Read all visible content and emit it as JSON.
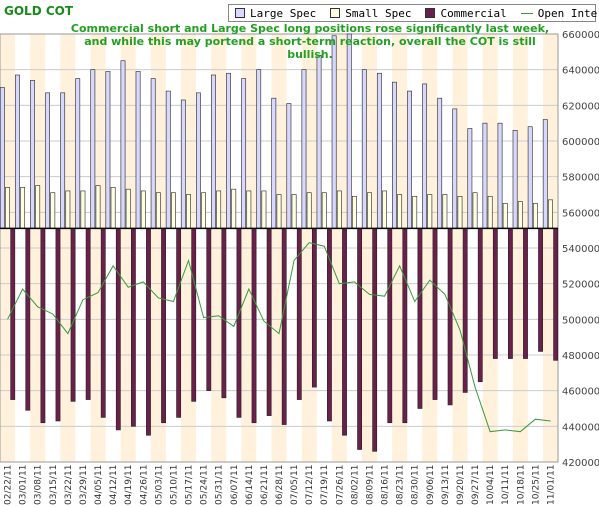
{
  "chart_data": {
    "type": "bar",
    "title": "GOLD COT",
    "annotation": "Commercial short and Large Spec long positions rose significantly last week, and while this may portend a short-term reaction, overall the COT is still bullish.",
    "legend": [
      "Large Spec",
      "Small Spec",
      "Commercial",
      "Open Interest"
    ],
    "legend_placement": "top-right",
    "grid": true,
    "categories": [
      "02/22/11",
      "03/01/11",
      "03/08/11",
      "03/15/11",
      "03/22/11",
      "03/29/11",
      "04/05/11",
      "04/12/11",
      "04/19/11",
      "04/26/11",
      "05/03/11",
      "05/10/11",
      "05/17/11",
      "05/24/11",
      "05/31/11",
      "06/07/11",
      "06/14/11",
      "06/21/11",
      "06/28/11",
      "07/05/11",
      "07/12/11",
      "07/19/11",
      "07/26/11",
      "08/02/11",
      "08/09/11",
      "08/16/11",
      "08/23/11",
      "08/30/11",
      "09/06/11",
      "09/13/11",
      "09/20/11",
      "09/27/11",
      "10/04/11",
      "10/11/11",
      "10/18/11",
      "10/25/11",
      "11/01/11"
    ],
    "right_axis": {
      "ylim": [
        420000,
        660000
      ],
      "ticks": [
        "420000",
        "440000",
        "460000",
        "480000",
        "500000",
        "520000",
        "540000",
        "560000",
        "580000",
        "600000",
        "620000",
        "640000",
        "660000"
      ]
    },
    "zero_level": 551000,
    "series": [
      {
        "name": "Large Spec",
        "color": "#d8d8ff",
        "values": [
          630000,
          637000,
          634000,
          627000,
          627000,
          635000,
          640000,
          639000,
          645000,
          639000,
          635000,
          628000,
          623000,
          627000,
          637000,
          638000,
          635000,
          640000,
          624000,
          621000,
          640000,
          648000,
          659000,
          660000,
          640000,
          638000,
          633000,
          628000,
          632000,
          624000,
          618000,
          607000,
          610000,
          610000,
          606000,
          608000,
          612000
        ]
      },
      {
        "name": "Small Spec",
        "color": "#ffffe0",
        "values": [
          574000,
          574000,
          575000,
          571000,
          572000,
          572000,
          575000,
          574000,
          573000,
          572000,
          571000,
          571000,
          570000,
          571000,
          572000,
          573000,
          572000,
          572000,
          570000,
          570000,
          571000,
          571000,
          572000,
          569000,
          571000,
          572000,
          570000,
          569000,
          570000,
          570000,
          569000,
          571000,
          569000,
          565000,
          566000,
          565000,
          567000
        ]
      },
      {
        "name": "Commercial",
        "color": "#6b1f4b",
        "values": [
          455000,
          449000,
          442000,
          443000,
          454000,
          455000,
          445000,
          438000,
          440000,
          435000,
          442000,
          445000,
          454000,
          460000,
          456000,
          445000,
          442000,
          446000,
          441000,
          455000,
          462000,
          443000,
          435000,
          427000,
          426000,
          442000,
          442000,
          450000,
          455000,
          452000,
          459000,
          465000,
          478000,
          478000,
          478000,
          482000,
          477000
        ]
      },
      {
        "name": "Open Interest",
        "color": "#3a9a3a",
        "values": [
          500000,
          517000,
          507000,
          503000,
          492000,
          511000,
          515000,
          530000,
          518000,
          521000,
          512000,
          510000,
          533000,
          501000,
          502000,
          496000,
          517000,
          499000,
          492000,
          533000,
          543000,
          541000,
          520000,
          521000,
          514000,
          513000,
          530000,
          510000,
          522000,
          514000,
          494000,
          462000,
          437000,
          438000,
          437000,
          444000,
          443000
        ]
      }
    ]
  }
}
